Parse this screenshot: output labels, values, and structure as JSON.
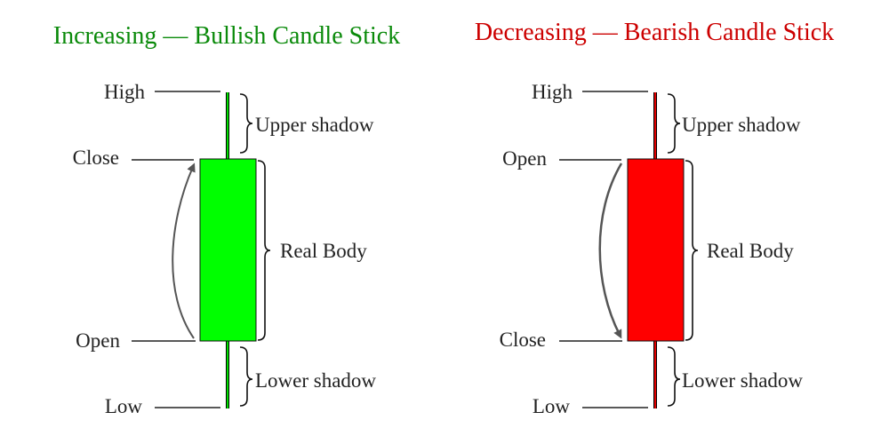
{
  "bullish": {
    "title": "Increasing — Bullish Candle Stick",
    "title_color": "#0a8a0a",
    "body_color": "#00ff00",
    "high": "High",
    "top_price": "Close",
    "bottom_price": "Open",
    "low": "Low",
    "upper_shadow": "Upper shadow",
    "real_body": "Real Body",
    "lower_shadow": "Lower shadow",
    "arrow_direction": "up"
  },
  "bearish": {
    "title": "Decreasing — Bearish Candle Stick",
    "title_color": "#cc0000",
    "body_color": "#ff0000",
    "high": "High",
    "top_price": "Open",
    "bottom_price": "Close",
    "low": "Low",
    "upper_shadow": "Upper shadow",
    "real_body": "Real Body",
    "lower_shadow": "Lower shadow",
    "arrow_direction": "down"
  }
}
